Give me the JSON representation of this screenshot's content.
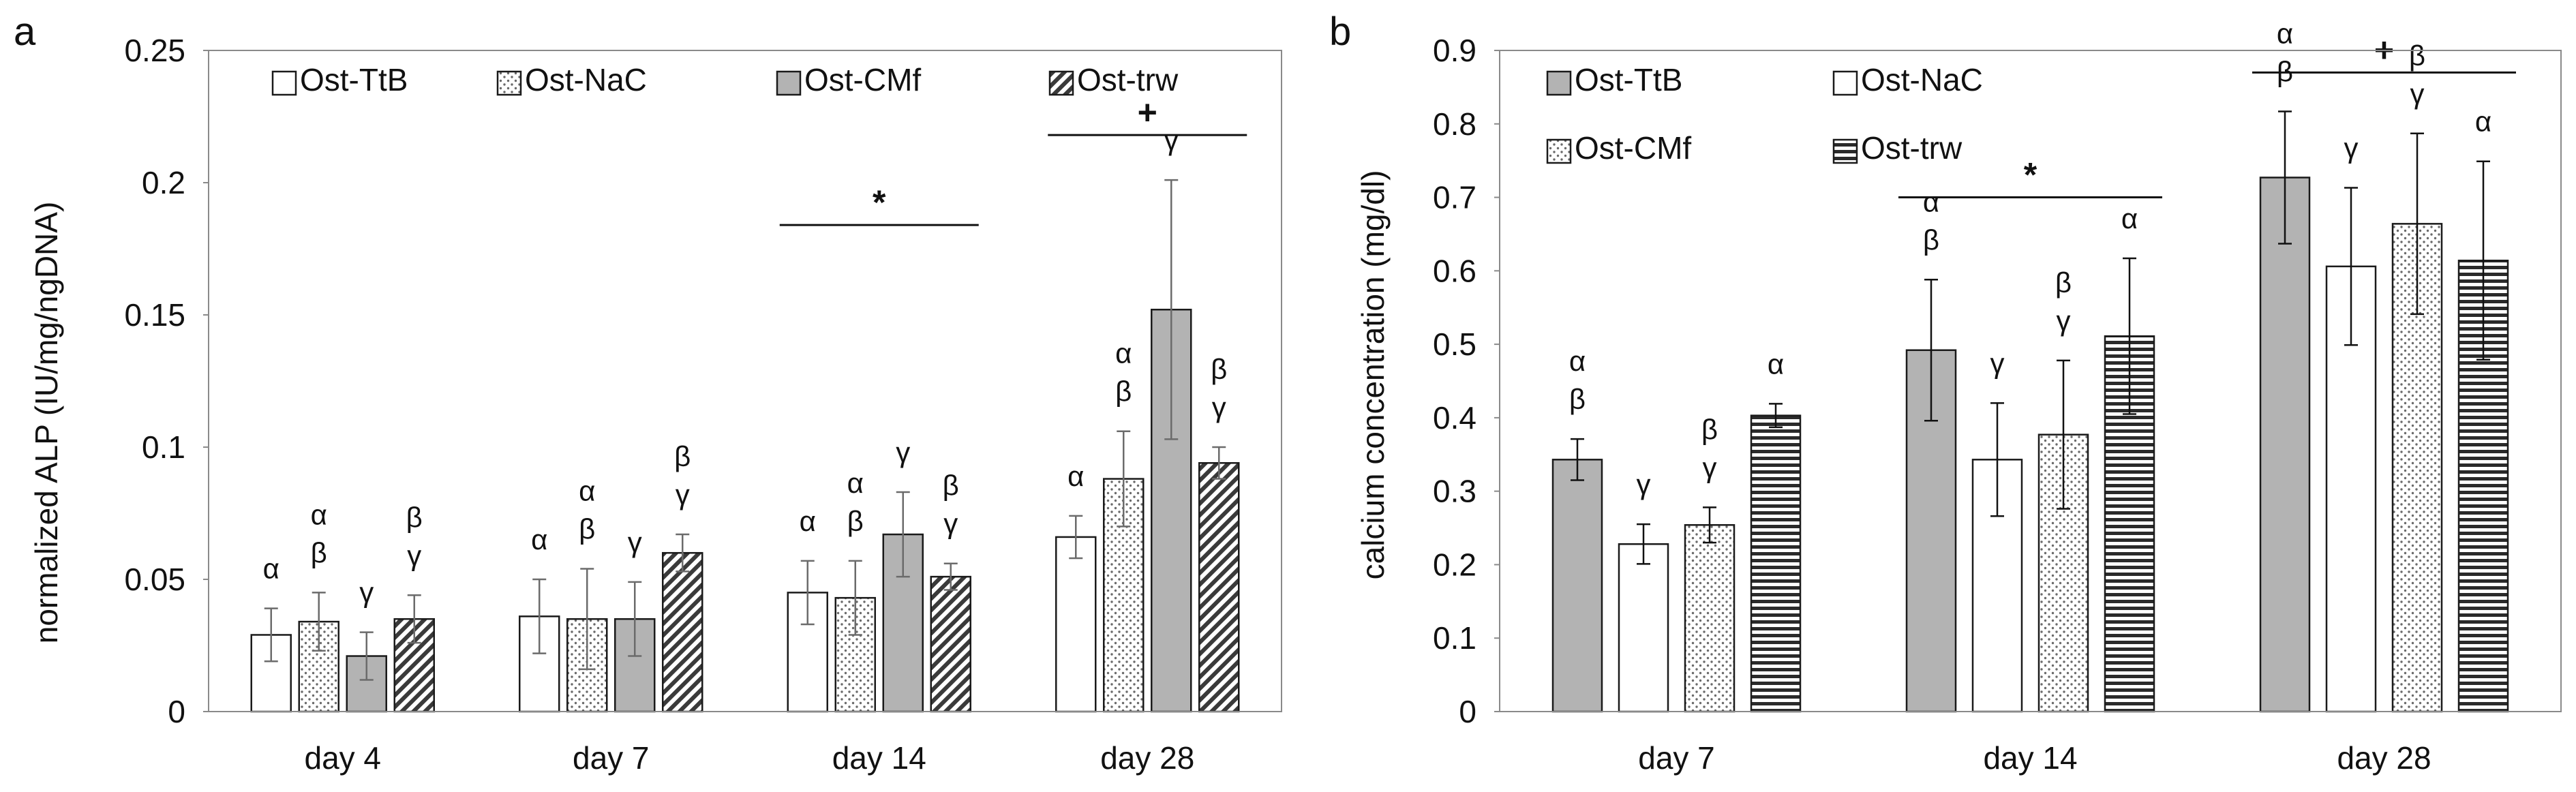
{
  "patterns": {
    "white": "#ffffff",
    "gray": "#c6c6c6",
    "gray_bar": "#b3b3b3",
    "stroke": "#1a1a1a",
    "error": "#6b6b6b"
  },
  "chart_data": [
    {
      "type": "bar",
      "panel_label": "a",
      "ylabel": "normalized ALP (IU/mg/ngDNA)",
      "xlabel": "",
      "ylim": [
        0,
        0.25
      ],
      "yticks": [
        "0",
        "0.05",
        "0.1",
        "0.15",
        "0.2",
        "0.25"
      ],
      "legend_placement": "top",
      "categories": [
        "day 4",
        "day 7",
        "day 14",
        "day 28"
      ],
      "series": [
        {
          "name": "Ost-TtB",
          "fill": "white",
          "values": [
            0.029,
            0.036,
            0.045,
            0.066
          ],
          "errors": [
            0.01,
            0.014,
            0.012,
            0.008
          ]
        },
        {
          "name": "Ost-NaC",
          "fill": "dots",
          "values": [
            0.034,
            0.035,
            0.043,
            0.088
          ],
          "errors": [
            0.011,
            0.019,
            0.014,
            0.018
          ]
        },
        {
          "name": "Ost-CMf",
          "fill": "gray",
          "values": [
            0.021,
            0.035,
            0.067,
            0.152
          ],
          "errors": [
            0.009,
            0.014,
            0.016,
            0.049
          ]
        },
        {
          "name": "Ost-trw",
          "fill": "diag",
          "values": [
            0.035,
            0.06,
            0.051,
            0.094
          ],
          "errors": [
            0.009,
            0.007,
            0.005,
            0.006
          ]
        }
      ],
      "significance_letters": [
        [
          [
            "α"
          ],
          [
            "α",
            "β"
          ],
          [
            "γ"
          ],
          [
            "β",
            "γ"
          ]
        ],
        [
          [
            "α"
          ],
          [
            "α",
            "β"
          ],
          [
            "γ"
          ],
          [
            "β",
            "γ"
          ]
        ],
        [
          [
            "α"
          ],
          [
            "α",
            "β"
          ],
          [
            "γ"
          ],
          [
            "β",
            "γ"
          ]
        ],
        [
          [
            "α"
          ],
          [
            "α",
            "β"
          ],
          [
            "γ"
          ],
          [
            "β",
            "γ"
          ]
        ]
      ],
      "brackets": [
        {
          "category": 2,
          "symbol": "*",
          "value": 0.184
        },
        {
          "category": 3,
          "symbol": "+",
          "value": 0.218
        }
      ]
    },
    {
      "type": "bar",
      "panel_label": "b",
      "ylabel": "calcium concentration (mg/dl)",
      "xlabel": "",
      "ylim": [
        0,
        0.9
      ],
      "yticks": [
        "0",
        "0.1",
        "0.2",
        "0.3",
        "0.4",
        "0.5",
        "0.6",
        "0.7",
        "0.8",
        "0.9"
      ],
      "legend_placement": "top-left",
      "categories": [
        "day 7",
        "day 14",
        "day 28"
      ],
      "series": [
        {
          "name": "Ost-TtB",
          "fill": "gray",
          "values": [
            0.343,
            0.492,
            0.727
          ],
          "errors": [
            0.028,
            0.096,
            0.09
          ]
        },
        {
          "name": "Ost-NaC",
          "fill": "white",
          "values": [
            0.228,
            0.343,
            0.606
          ],
          "errors": [
            0.027,
            0.077,
            0.107
          ]
        },
        {
          "name": "Ost-CMf",
          "fill": "dots",
          "values": [
            0.254,
            0.377,
            0.664
          ],
          "errors": [
            0.024,
            0.101,
            0.123
          ]
        },
        {
          "name": "Ost-trw",
          "fill": "hlines",
          "values": [
            0.403,
            0.511,
            0.614
          ],
          "errors": [
            0.016,
            0.106,
            0.135
          ]
        }
      ],
      "significance_letters": [
        [
          [
            "α",
            "β"
          ],
          [
            "γ"
          ],
          [
            "β",
            "γ"
          ],
          [
            "α"
          ]
        ],
        [
          [
            "α",
            "β"
          ],
          [
            "γ"
          ],
          [
            "β",
            "γ"
          ],
          [
            "α"
          ]
        ],
        [
          [
            "α",
            "β"
          ],
          [
            "γ"
          ],
          [
            "β",
            "γ"
          ],
          [
            "α"
          ]
        ]
      ],
      "brackets": [
        {
          "category": 1,
          "symbol": "*",
          "value": 0.7
        },
        {
          "category": 2,
          "symbol": "+",
          "value": 0.87
        }
      ]
    }
  ]
}
